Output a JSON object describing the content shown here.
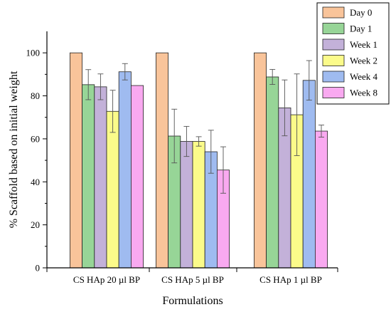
{
  "chart_data": {
    "type": "bar",
    "title": "",
    "xlabel": "Formulations",
    "ylabel": "% Scaffold based on initial weight",
    "categories": [
      "CS HAp 20 µl BP",
      "CS HAp 5 µl BP",
      "CS HAp 1 µl BP"
    ],
    "ylim": [
      0,
      110
    ],
    "yticks": [
      0,
      20,
      40,
      60,
      80,
      100
    ],
    "grid": false,
    "legend_position": "top-right",
    "series": [
      {
        "name": "Day 0",
        "color": "#f9c49a",
        "values": [
          100,
          100,
          100
        ],
        "errors": [
          0,
          0,
          0
        ]
      },
      {
        "name": "Day 1",
        "color": "#97d597",
        "values": [
          85.2,
          61.3,
          88.8
        ],
        "errors": [
          7.0,
          12.5,
          3.5
        ]
      },
      {
        "name": "Week 1",
        "color": "#c3b1d9",
        "values": [
          84.2,
          58.8,
          74.4
        ],
        "errors": [
          6.0,
          7.0,
          13.0
        ]
      },
      {
        "name": "Week 2",
        "color": "#fbfb8a",
        "values": [
          72.8,
          58.8,
          71.2
        ],
        "errors": [
          9.8,
          2.2,
          19.0
        ]
      },
      {
        "name": "Week 4",
        "color": "#9fbbf0",
        "values": [
          91.2,
          54.0,
          87.2
        ],
        "errors": [
          3.8,
          10.0,
          9.2
        ]
      },
      {
        "name": "Week 8",
        "color": "#f9a9f0",
        "values": [
          84.8,
          45.5,
          63.6
        ],
        "errors": [
          0,
          10.8,
          2.8
        ]
      }
    ]
  }
}
